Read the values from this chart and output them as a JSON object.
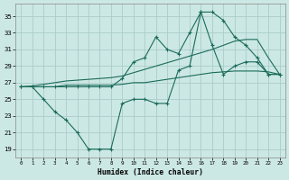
{
  "xlabel": "Humidex (Indice chaleur)",
  "bg_color": "#cce8e4",
  "grid_color": "#aaccca",
  "line_color": "#1a6b5a",
  "x_ticks": [
    0,
    1,
    2,
    3,
    4,
    5,
    6,
    7,
    8,
    9,
    10,
    11,
    12,
    13,
    14,
    15,
    16,
    17,
    18,
    19,
    20,
    21,
    22,
    23
  ],
  "y_ticks": [
    19,
    21,
    23,
    25,
    27,
    29,
    31,
    33,
    35
  ],
  "xlim": [
    -0.5,
    23.5
  ],
  "ylim": [
    18.0,
    36.5
  ],
  "line_top": [
    26.5,
    26.5,
    26.5,
    26.5,
    26.5,
    26.5,
    26.5,
    26.5,
    26.5,
    27.5,
    29.5,
    30.0,
    32.5,
    31.0,
    30.5,
    33.0,
    35.5,
    35.5,
    34.5,
    32.5,
    31.5,
    30.0,
    28.0,
    28.0
  ],
  "line_bot": [
    26.5,
    26.5,
    25.0,
    23.5,
    22.5,
    21.0,
    19.0,
    19.0,
    19.0,
    24.5,
    25.0,
    25.0,
    24.5,
    24.5,
    28.5,
    29.0,
    35.5,
    31.5,
    28.0,
    29.0,
    29.5,
    29.5,
    28.0,
    28.0
  ],
  "line_mean_lo": [
    26.5,
    26.5,
    26.5,
    26.5,
    26.7,
    26.7,
    26.7,
    26.7,
    26.7,
    26.8,
    27.0,
    27.0,
    27.2,
    27.4,
    27.6,
    27.8,
    28.0,
    28.2,
    28.3,
    28.4,
    28.4,
    28.4,
    28.3,
    28.0
  ],
  "line_mean_hi": [
    26.5,
    26.6,
    26.8,
    27.0,
    27.2,
    27.3,
    27.4,
    27.5,
    27.6,
    27.8,
    28.2,
    28.6,
    29.0,
    29.4,
    29.8,
    30.2,
    30.6,
    31.0,
    31.5,
    32.0,
    32.2,
    32.2,
    30.0,
    28.0
  ]
}
